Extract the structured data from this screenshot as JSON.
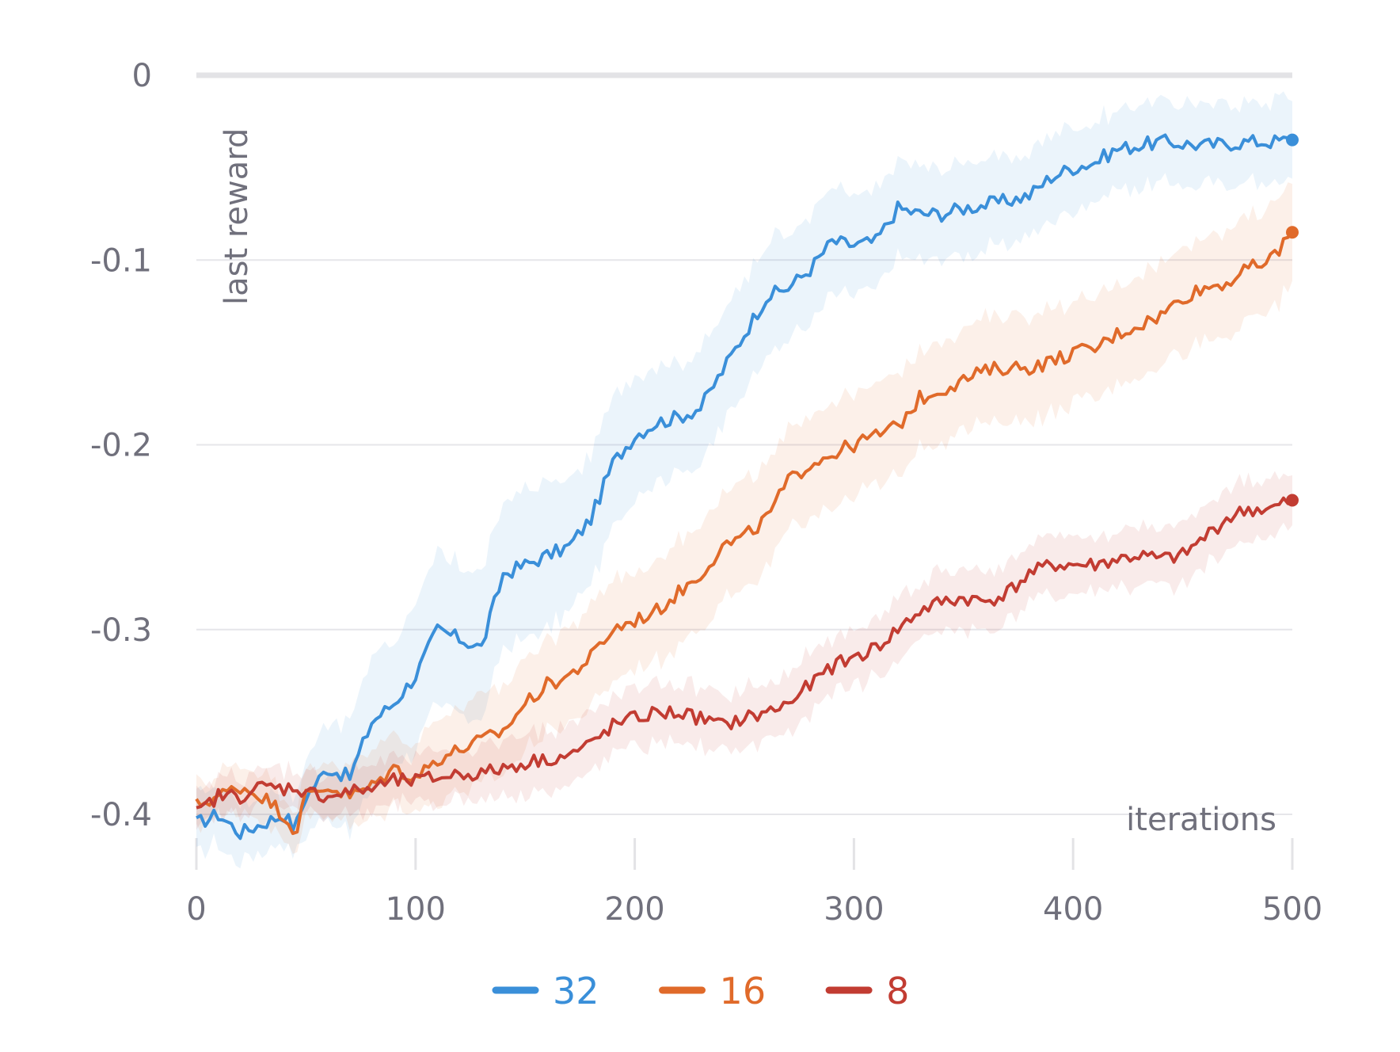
{
  "chart_data": {
    "type": "line",
    "xlabel": "iterations",
    "ylabel": "last reward",
    "xlim": [
      0,
      500
    ],
    "ylim": [
      -0.4,
      0
    ],
    "xticks": [
      0,
      100,
      200,
      300,
      400,
      500
    ],
    "xtick_labels": [
      "0",
      "100",
      "200",
      "300",
      "400",
      "500"
    ],
    "yticks": [
      0,
      -0.1,
      -0.2,
      -0.3,
      -0.4
    ],
    "ytick_labels": [
      "0",
      "-0.1",
      "-0.2",
      "-0.3",
      "-0.4"
    ],
    "grid": true,
    "legend_position": "bottom-center",
    "x": [
      0,
      10,
      20,
      30,
      40,
      45,
      50,
      60,
      70,
      80,
      90,
      100,
      110,
      120,
      130,
      140,
      150,
      160,
      170,
      180,
      190,
      200,
      210,
      220,
      230,
      240,
      250,
      260,
      270,
      280,
      290,
      300,
      310,
      320,
      330,
      340,
      350,
      360,
      370,
      380,
      390,
      400,
      410,
      420,
      430,
      440,
      450,
      460,
      470,
      480,
      490,
      500
    ],
    "series": [
      {
        "name": "32",
        "color": "#3a8fd9",
        "values": [
          -0.405,
          -0.4,
          -0.41,
          -0.405,
          -0.4,
          -0.408,
          -0.39,
          -0.375,
          -0.38,
          -0.35,
          -0.34,
          -0.325,
          -0.3,
          -0.305,
          -0.31,
          -0.27,
          -0.265,
          -0.26,
          -0.255,
          -0.24,
          -0.21,
          -0.195,
          -0.188,
          -0.185,
          -0.18,
          -0.16,
          -0.14,
          -0.12,
          -0.115,
          -0.105,
          -0.09,
          -0.092,
          -0.09,
          -0.072,
          -0.075,
          -0.075,
          -0.072,
          -0.07,
          -0.068,
          -0.065,
          -0.055,
          -0.05,
          -0.047,
          -0.04,
          -0.038,
          -0.036,
          -0.037,
          -0.038,
          -0.037,
          -0.036,
          -0.036,
          -0.035
        ],
        "band": [
          0.015,
          0.015,
          0.015,
          0.015,
          0.015,
          0.015,
          0.02,
          0.025,
          0.03,
          0.035,
          0.035,
          0.04,
          0.04,
          0.04,
          0.04,
          0.04,
          0.04,
          0.04,
          0.035,
          0.035,
          0.035,
          0.035,
          0.03,
          0.03,
          0.03,
          0.03,
          0.03,
          0.03,
          0.03,
          0.028,
          0.028,
          0.027,
          0.027,
          0.026,
          0.025,
          0.025,
          0.024,
          0.024,
          0.023,
          0.023,
          0.023,
          0.022,
          0.022,
          0.022,
          0.022,
          0.022,
          0.022,
          0.022,
          0.022,
          0.022,
          0.022,
          0.022
        ]
      },
      {
        "name": "16",
        "color": "#e06a2a",
        "values": [
          -0.395,
          -0.39,
          -0.385,
          -0.39,
          -0.4,
          -0.41,
          -0.39,
          -0.385,
          -0.39,
          -0.385,
          -0.375,
          -0.38,
          -0.37,
          -0.365,
          -0.36,
          -0.355,
          -0.34,
          -0.33,
          -0.325,
          -0.315,
          -0.3,
          -0.295,
          -0.29,
          -0.28,
          -0.27,
          -0.255,
          -0.25,
          -0.24,
          -0.22,
          -0.21,
          -0.205,
          -0.2,
          -0.195,
          -0.19,
          -0.175,
          -0.17,
          -0.165,
          -0.16,
          -0.158,
          -0.158,
          -0.155,
          -0.15,
          -0.148,
          -0.14,
          -0.135,
          -0.13,
          -0.12,
          -0.115,
          -0.112,
          -0.105,
          -0.1,
          -0.085
        ],
        "band": [
          0.012,
          0.012,
          0.012,
          0.012,
          0.012,
          0.012,
          0.012,
          0.014,
          0.016,
          0.018,
          0.02,
          0.02,
          0.022,
          0.022,
          0.024,
          0.024,
          0.025,
          0.025,
          0.026,
          0.026,
          0.027,
          0.027,
          0.028,
          0.028,
          0.028,
          0.028,
          0.028,
          0.028,
          0.028,
          0.028,
          0.028,
          0.028,
          0.028,
          0.028,
          0.028,
          0.028,
          0.028,
          0.028,
          0.028,
          0.028,
          0.028,
          0.028,
          0.028,
          0.028,
          0.028,
          0.028,
          0.028,
          0.028,
          0.028,
          0.028,
          0.028,
          0.028
        ]
      },
      {
        "name": "8",
        "color": "#c23c32",
        "values": [
          -0.4,
          -0.39,
          -0.39,
          -0.385,
          -0.386,
          -0.385,
          -0.388,
          -0.39,
          -0.388,
          -0.386,
          -0.382,
          -0.382,
          -0.38,
          -0.378,
          -0.378,
          -0.375,
          -0.372,
          -0.37,
          -0.368,
          -0.362,
          -0.352,
          -0.348,
          -0.345,
          -0.345,
          -0.348,
          -0.352,
          -0.348,
          -0.345,
          -0.34,
          -0.33,
          -0.32,
          -0.315,
          -0.31,
          -0.3,
          -0.29,
          -0.285,
          -0.283,
          -0.285,
          -0.28,
          -0.27,
          -0.265,
          -0.265,
          -0.265,
          -0.262,
          -0.26,
          -0.262,
          -0.26,
          -0.25,
          -0.24,
          -0.235,
          -0.235,
          -0.23
        ],
        "band": [
          0.01,
          0.01,
          0.01,
          0.01,
          0.01,
          0.01,
          0.01,
          0.01,
          0.012,
          0.012,
          0.012,
          0.012,
          0.014,
          0.014,
          0.014,
          0.015,
          0.015,
          0.016,
          0.016,
          0.016,
          0.016,
          0.016,
          0.016,
          0.016,
          0.016,
          0.016,
          0.016,
          0.016,
          0.016,
          0.016,
          0.016,
          0.016,
          0.016,
          0.016,
          0.016,
          0.016,
          0.016,
          0.016,
          0.016,
          0.016,
          0.016,
          0.016,
          0.016,
          0.016,
          0.016,
          0.016,
          0.016,
          0.016,
          0.016,
          0.016,
          0.016,
          0.016
        ]
      }
    ]
  }
}
